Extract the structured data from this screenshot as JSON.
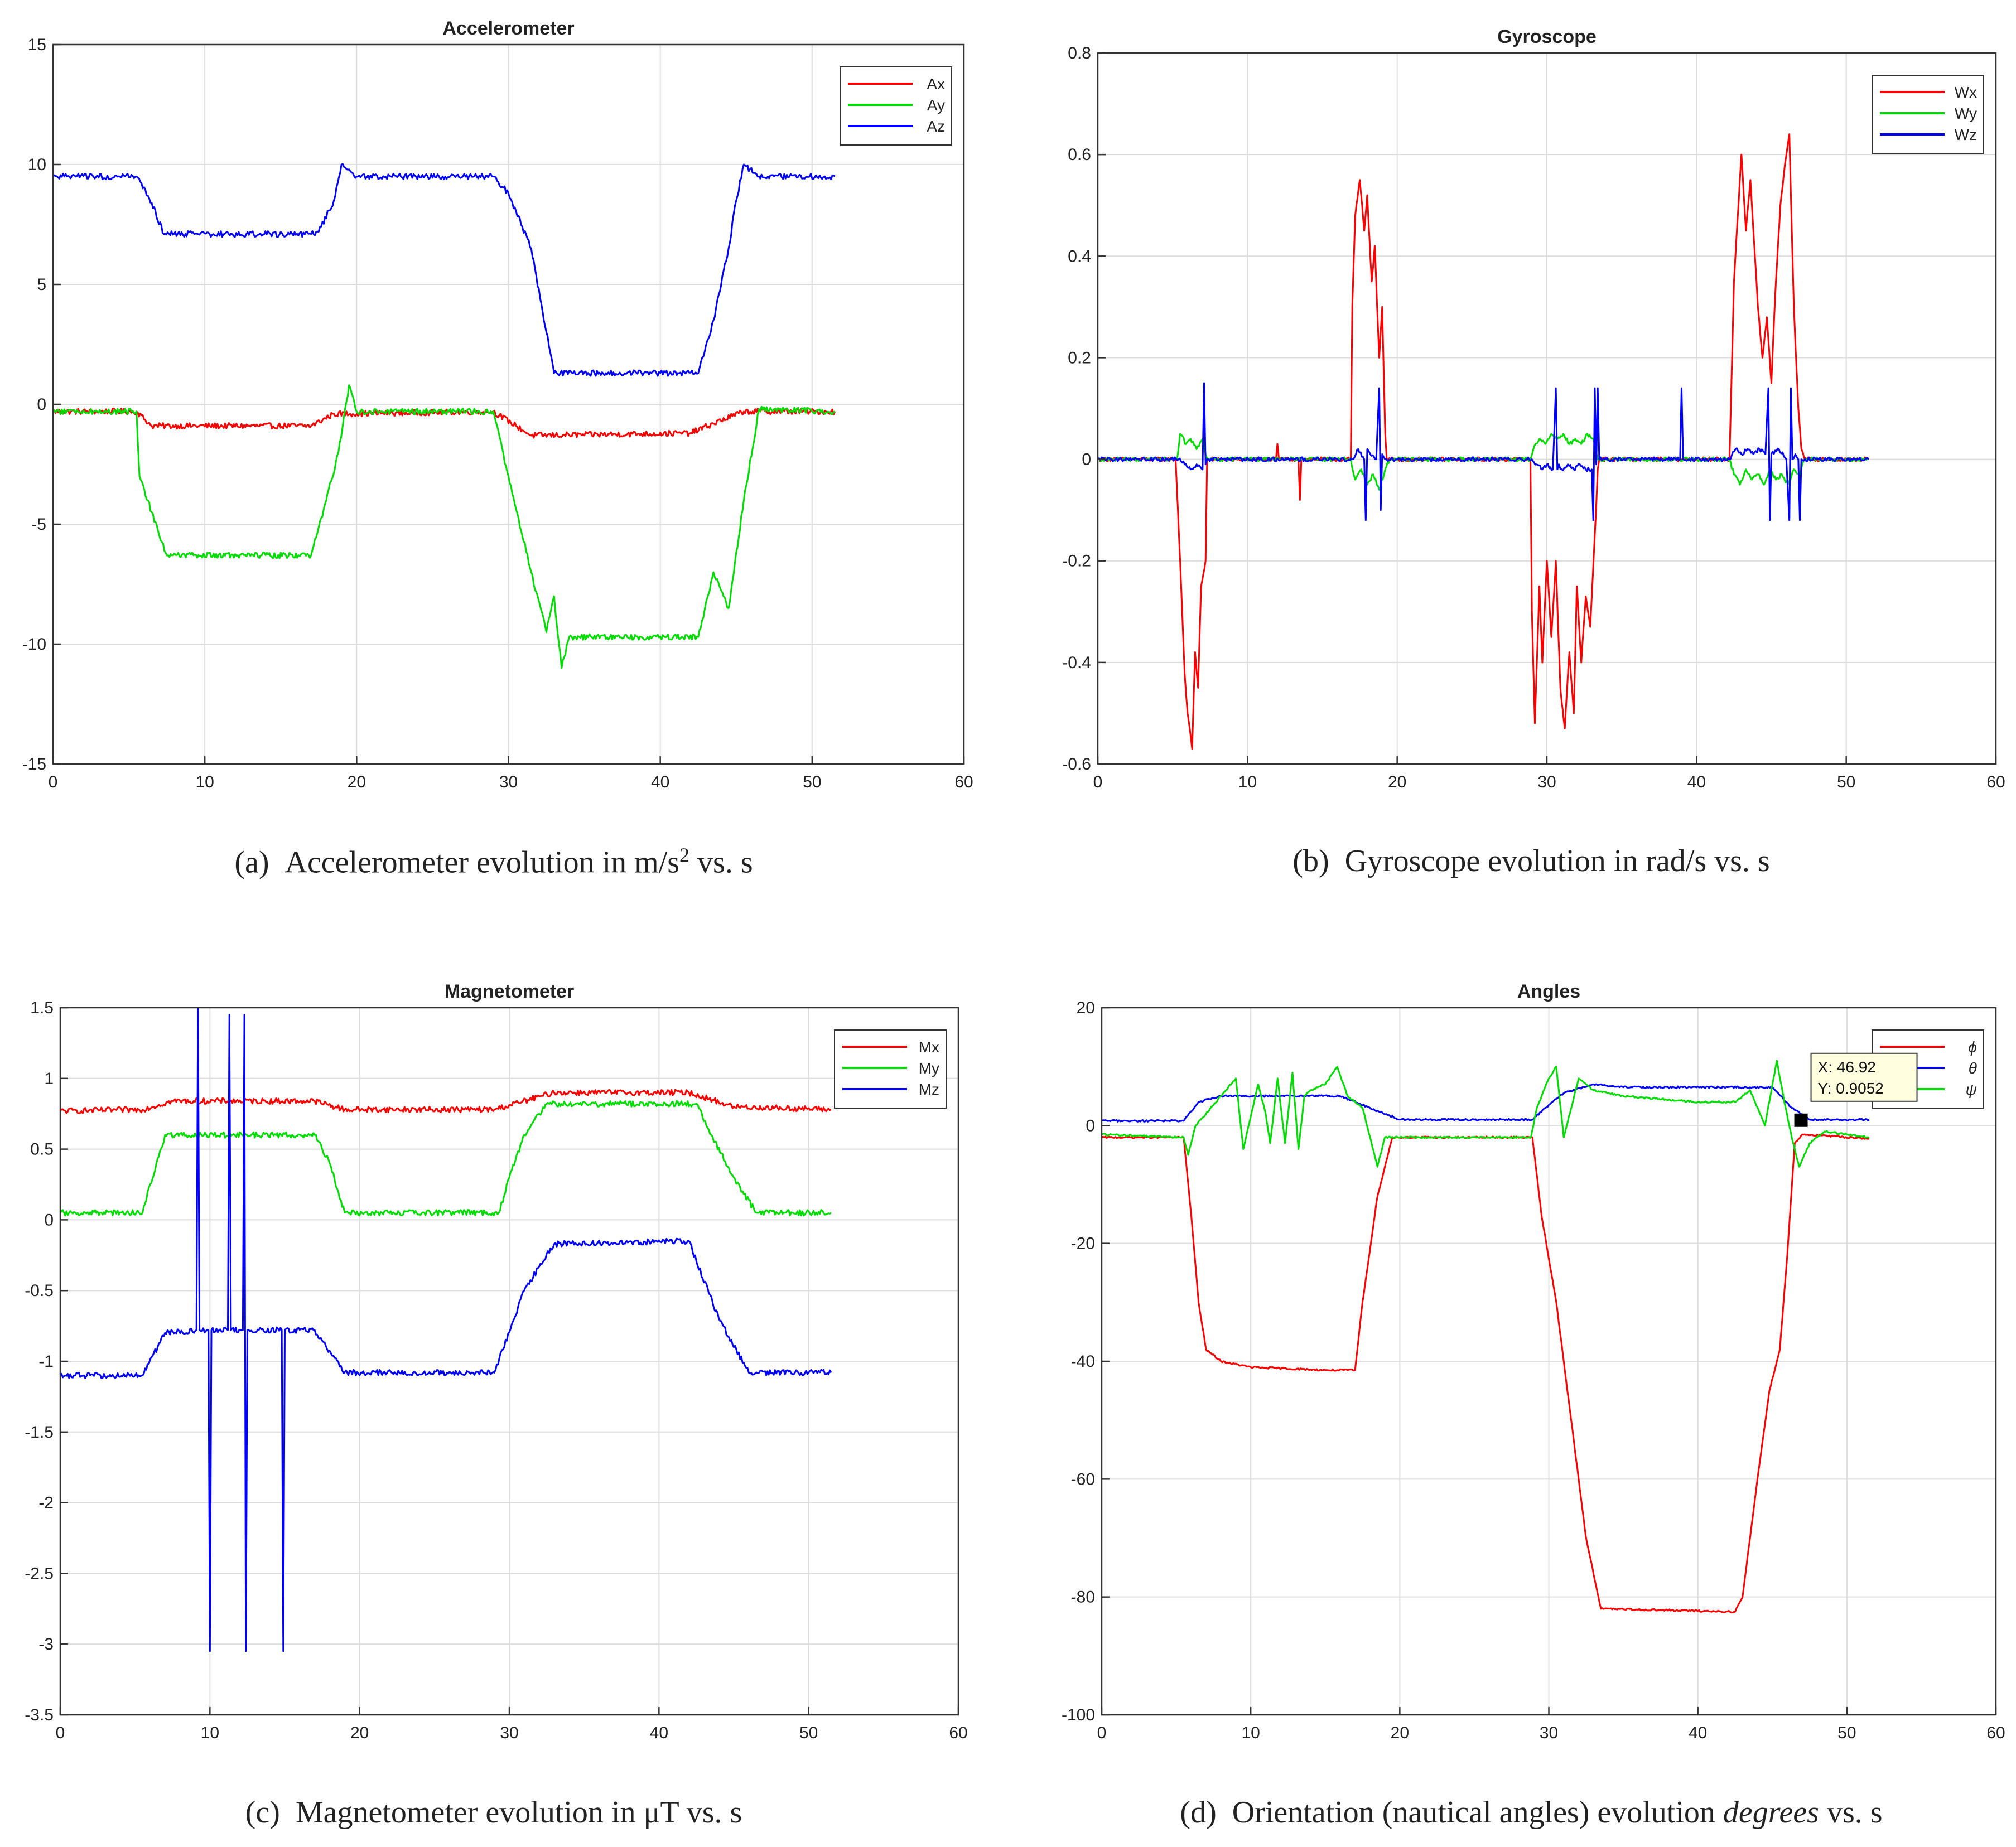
{
  "captions": {
    "a_label": "(a)",
    "a_pre": "Accelerometer evolution in m/s",
    "a_sup": "2",
    "a_post": " vs. s",
    "b_label": "(b)",
    "b_text": "Gyroscope evolution in rad/s vs. s",
    "c_label": "(c)",
    "c_text": "Magnetometer evolution in μT vs. s",
    "d_label": "(d)",
    "d_pre": "Orientation (nautical angles) evolution ",
    "d_it": "degrees",
    "d_post": " vs. s"
  },
  "colors": {
    "red": "#ff0000",
    "green": "#00dd00",
    "blue": "#0000ff",
    "grid": "#dcdcdc",
    "axis": "#333333"
  },
  "chart_data": [
    {
      "id": "acc",
      "type": "line",
      "title": "Accelerometer",
      "xlabel": "",
      "ylabel": "",
      "xlim": [
        0,
        60
      ],
      "ylim": [
        -15,
        15
      ],
      "xticks": [
        0,
        10,
        20,
        30,
        40,
        50,
        60
      ],
      "yticks": [
        -15,
        -10,
        -5,
        0,
        5,
        10,
        15
      ],
      "grid": true,
      "legend": "top-right",
      "noise": 0.12,
      "series": [
        {
          "name": "Ax",
          "color": "#ff0000",
          "x": [
            0,
            5.5,
            6.5,
            17,
            18.5,
            29,
            30.5,
            31.5,
            42,
            43.5,
            45.5,
            51.5
          ],
          "y": [
            -0.3,
            -0.3,
            -0.9,
            -0.9,
            -0.4,
            -0.3,
            -0.9,
            -1.3,
            -1.2,
            -0.8,
            -0.3,
            -0.3
          ]
        },
        {
          "name": "Ay",
          "color": "#00dd00",
          "x": [
            0,
            5.5,
            5.7,
            6.5,
            7.5,
            17,
            18,
            18.8,
            19.5,
            20,
            29,
            30,
            31.5,
            32.5,
            33,
            33.5,
            34,
            42.5,
            43.5,
            44.5,
            45.5,
            46.5,
            51.5
          ],
          "y": [
            -0.3,
            -0.3,
            -3,
            -4.5,
            -6.3,
            -6.3,
            -4,
            -2,
            0.8,
            -0.3,
            -0.3,
            -3,
            -7,
            -9.5,
            -8,
            -11,
            -9.7,
            -9.7,
            -7,
            -8.5,
            -4,
            -0.2,
            -0.3
          ]
        },
        {
          "name": "Az",
          "color": "#0000ff",
          "x": [
            0,
            5.5,
            6.5,
            7.3,
            17,
            17.5,
            18.5,
            19,
            19.5,
            20,
            29,
            30,
            31.5,
            32.5,
            33,
            42.5,
            43.5,
            44.5,
            45,
            45.5,
            46.5,
            51.5
          ],
          "y": [
            9.5,
            9.5,
            8.4,
            7.1,
            7.1,
            7.2,
            8.5,
            10,
            9.8,
            9.5,
            9.5,
            8.8,
            6.5,
            3,
            1.3,
            1.3,
            3.5,
            6.5,
            8.5,
            10,
            9.5,
            9.5
          ]
        }
      ]
    },
    {
      "id": "gyro",
      "type": "line",
      "title": "Gyroscope",
      "xlabel": "",
      "ylabel": "",
      "xlim": [
        0,
        60
      ],
      "ylim": [
        -0.6,
        0.8
      ],
      "xticks": [
        0,
        10,
        20,
        30,
        40,
        50,
        60
      ],
      "yticks": [
        -0.6,
        -0.4,
        -0.2,
        0,
        0.2,
        0.4,
        0.6,
        0.8
      ],
      "grid": true,
      "legend": "top-right",
      "noise": 0.004,
      "series": [
        {
          "name": "Wx",
          "color": "#ff0000",
          "x": [
            0,
            5.2,
            5.5,
            5.8,
            6,
            6.3,
            6.5,
            6.7,
            6.9,
            7.2,
            7.3,
            7.4,
            11.9,
            12,
            12.1,
            13.4,
            13.5,
            13.6,
            16.9,
            17,
            17.2,
            17.5,
            17.8,
            18,
            18.3,
            18.5,
            18.8,
            19,
            19.2,
            19.3,
            19.4,
            28.9,
            29,
            29.2,
            29.5,
            29.7,
            30,
            30.3,
            30.6,
            30.9,
            31.2,
            31.5,
            31.8,
            32,
            32.3,
            32.6,
            32.9,
            33.2,
            33.4,
            33.5,
            42.2,
            42.5,
            42.8,
            43,
            43.3,
            43.6,
            43.9,
            44.1,
            44.4,
            44.7,
            45,
            45.3,
            45.6,
            45.9,
            46.2,
            46.5,
            46.8,
            47,
            47.2,
            51.5
          ],
          "y": [
            0,
            0,
            -0.2,
            -0.42,
            -0.5,
            -0.57,
            -0.38,
            -0.45,
            -0.25,
            -0.2,
            0,
            0,
            0,
            0.03,
            0,
            0,
            -0.08,
            0,
            0,
            0.3,
            0.48,
            0.55,
            0.45,
            0.52,
            0.35,
            0.42,
            0.2,
            0.3,
            0.05,
            0,
            0,
            0,
            -0.3,
            -0.52,
            -0.25,
            -0.4,
            -0.2,
            -0.35,
            -0.2,
            -0.45,
            -0.53,
            -0.38,
            -0.5,
            -0.25,
            -0.4,
            -0.27,
            -0.33,
            -0.15,
            -0.02,
            0,
            0,
            0.35,
            0.5,
            0.6,
            0.45,
            0.55,
            0.4,
            0.3,
            0.2,
            0.28,
            0.15,
            0.35,
            0.5,
            0.58,
            0.64,
            0.3,
            0.1,
            0.02,
            0,
            0
          ]
        },
        {
          "name": "Wy",
          "color": "#00dd00",
          "x": [
            0,
            5.3,
            5.5,
            5.9,
            6.2,
            6.6,
            7,
            7.2,
            7.4,
            16.9,
            17.2,
            17.6,
            18,
            18.4,
            18.8,
            19.2,
            19.5,
            28.9,
            29.1,
            29.5,
            29.9,
            30.3,
            30.7,
            31.1,
            31.5,
            31.9,
            32.3,
            32.7,
            33.1,
            33.4,
            42.2,
            42.5,
            42.9,
            43.3,
            43.7,
            44.1,
            44.5,
            44.9,
            45.3,
            45.7,
            46.1,
            46.5,
            46.9,
            47.2,
            51.5
          ],
          "y": [
            0,
            0,
            0.05,
            0.03,
            0.04,
            0.02,
            0.04,
            0.01,
            0,
            0,
            -0.04,
            -0.02,
            -0.05,
            -0.03,
            -0.06,
            -0.02,
            0,
            0,
            0.02,
            0.04,
            0.03,
            0.05,
            0.04,
            0.05,
            0.03,
            0.04,
            0.03,
            0.05,
            0.04,
            0,
            0,
            -0.03,
            -0.05,
            -0.02,
            -0.04,
            -0.03,
            -0.05,
            -0.02,
            -0.04,
            -0.03,
            -0.05,
            -0.02,
            -0.03,
            0,
            0
          ]
        },
        {
          "name": "Wz",
          "color": "#0000ff",
          "x": [
            0,
            5.4,
            5.8,
            6.2,
            6.6,
            7,
            7.1,
            7.2,
            7.3,
            7.4,
            17,
            17.4,
            17.8,
            17.9,
            18,
            18.2,
            18.6,
            18.8,
            18.9,
            19,
            19.2,
            29,
            29.3,
            29.7,
            30,
            30.4,
            30.6,
            30.7,
            30.8,
            31,
            31.4,
            31.8,
            32.2,
            32.6,
            33,
            33.1,
            33.2,
            33.3,
            33.4,
            33.5,
            38.9,
            39,
            39.1,
            42.2,
            42.6,
            43,
            43.4,
            43.8,
            44.2,
            44.6,
            44.8,
            44.9,
            45,
            45.5,
            46,
            46.2,
            46.3,
            46.4,
            46.6,
            46.8,
            46.9,
            47,
            51.5
          ],
          "y": [
            0,
            0,
            -0.01,
            -0.02,
            -0.01,
            -0.02,
            0.15,
            -0.01,
            0,
            0,
            0,
            0.02,
            0,
            -0.12,
            0.02,
            0.01,
            0,
            0.14,
            -0.1,
            0.01,
            0,
            0,
            -0.01,
            -0.02,
            -0.01,
            -0.02,
            0.14,
            -0.02,
            -0.01,
            -0.02,
            -0.01,
            -0.02,
            -0.01,
            -0.02,
            -0.02,
            -0.12,
            0.14,
            -0.01,
            0.14,
            0,
            0,
            0.14,
            0,
            0,
            0.02,
            0.01,
            0.02,
            0.01,
            0.02,
            0.01,
            0.14,
            -0.12,
            0.01,
            0.02,
            0,
            -0.12,
            0.14,
            0,
            0.01,
            0,
            -0.12,
            0,
            0
          ]
        }
      ]
    },
    {
      "id": "mag",
      "type": "line",
      "title": "Magnetometer",
      "xlabel": "",
      "ylabel": "",
      "xlim": [
        0,
        60
      ],
      "ylim": [
        -3.5,
        1.5
      ],
      "xticks": [
        0,
        10,
        20,
        30,
        40,
        50,
        60
      ],
      "yticks": [
        -3.5,
        -3,
        -2.5,
        -2,
        -1.5,
        -1,
        -0.5,
        0,
        0.5,
        1,
        1.5
      ],
      "grid": true,
      "legend": "top-right",
      "noise": 0.02,
      "series": [
        {
          "name": "Mx",
          "color": "#ff0000",
          "x": [
            0,
            5.5,
            7.5,
            17,
            19,
            29,
            33,
            42,
            45,
            51.5
          ],
          "y": [
            0.77,
            0.78,
            0.84,
            0.84,
            0.78,
            0.78,
            0.9,
            0.9,
            0.8,
            0.78
          ]
        },
        {
          "name": "My",
          "color": "#00dd00",
          "x": [
            0,
            5.5,
            6,
            7,
            17,
            18,
            19,
            29.3,
            30,
            31,
            32.5,
            42.5,
            43.5,
            45,
            46.5,
            51.5
          ],
          "y": [
            0.05,
            0.05,
            0.25,
            0.6,
            0.6,
            0.4,
            0.05,
            0.05,
            0.3,
            0.6,
            0.82,
            0.82,
            0.6,
            0.3,
            0.05,
            0.05
          ]
        },
        {
          "name": "Mz",
          "color": "#0000ff",
          "x": [
            0,
            5.5,
            7,
            9.1,
            9.2,
            9.3,
            9.9,
            10,
            10.1,
            11.2,
            11.3,
            11.4,
            12.2,
            12.3,
            12.4,
            12.5,
            12.6,
            14.8,
            14.9,
            15,
            17,
            19,
            29,
            31,
            33,
            42,
            44,
            46,
            51.5
          ],
          "y": [
            -1.1,
            -1.1,
            -0.8,
            -0.78,
            1.5,
            -0.78,
            -0.78,
            -3.05,
            -0.78,
            -0.78,
            1.45,
            -0.78,
            -0.78,
            1.45,
            -3.05,
            -0.78,
            -0.78,
            -0.78,
            -3.05,
            -0.78,
            -0.78,
            -1.08,
            -1.08,
            -0.5,
            -0.17,
            -0.15,
            -0.7,
            -1.08,
            -1.08
          ]
        }
      ]
    },
    {
      "id": "angles",
      "type": "line",
      "title": "Angles",
      "xlabel": "",
      "ylabel": "",
      "xlim": [
        0,
        60
      ],
      "ylim": [
        -100,
        20
      ],
      "xticks": [
        0,
        10,
        20,
        30,
        40,
        50,
        60
      ],
      "yticks": [
        -100,
        -80,
        -60,
        -40,
        -20,
        0,
        20
      ],
      "grid": true,
      "legend": "top-right",
      "noise": 0.15,
      "series": [
        {
          "name": "ϕ",
          "color": "#ff0000",
          "x": [
            0,
            5.5,
            6,
            6.5,
            7,
            8,
            10,
            15,
            17,
            17.5,
            18.5,
            19.5,
            28.9,
            29.5,
            30.5,
            31.5,
            32.5,
            33.5,
            42.5,
            43,
            44,
            44.8,
            45.5,
            46,
            46.5,
            47,
            51.5
          ],
          "y": [
            -2,
            -2,
            -15,
            -30,
            -38,
            -40,
            -41,
            -41.5,
            -41.5,
            -30,
            -12,
            -2,
            -2,
            -15,
            -30,
            -50,
            -70,
            -82,
            -82.5,
            -80,
            -60,
            -45,
            -38,
            -22,
            -3,
            -1.5,
            -2.2
          ]
        },
        {
          "name": "θ",
          "color": "#0000ff",
          "x": [
            0,
            5.5,
            6.5,
            8,
            16,
            18,
            20,
            28.9,
            30,
            31,
            33,
            35,
            42,
            45,
            46.3,
            47.5,
            51.5
          ],
          "y": [
            0.8,
            0.8,
            4,
            5,
            5,
            3,
            1,
            1,
            3.5,
            5.5,
            7,
            6.5,
            6.5,
            6.5,
            3,
            1,
            1
          ]
        },
        {
          "name": "ψ",
          "color": "#00dd00",
          "x": [
            0,
            5.5,
            5.8,
            6.3,
            7,
            8,
            9,
            9.5,
            10.5,
            11,
            11.3,
            11.8,
            12.3,
            12.8,
            13.2,
            13.6,
            14,
            15,
            15.8,
            16.5,
            17.5,
            18.5,
            19,
            20,
            28.8,
            29.2,
            30,
            30.5,
            31,
            32,
            33,
            35,
            40,
            42.5,
            43.5,
            44.5,
            45.3,
            45.8,
            46.3,
            46.8,
            47.5,
            48.5,
            51.5
          ],
          "y": [
            -1.5,
            -2,
            -5,
            0,
            2,
            5,
            8,
            -4,
            7,
            2,
            -3,
            8,
            -3,
            9,
            -4,
            5,
            6,
            7,
            10,
            5,
            3,
            -7,
            -2,
            -2,
            -2,
            3,
            8,
            10,
            -2,
            8,
            6,
            5,
            4,
            4,
            6,
            0,
            11,
            4,
            -2,
            -7,
            -3,
            -1,
            -2
          ]
        }
      ]
    }
  ],
  "datatip": {
    "x_label": "X: 46.92",
    "y_label": "Y: 0.9052",
    "x_value": 46.92,
    "y_value": 0.9052
  }
}
